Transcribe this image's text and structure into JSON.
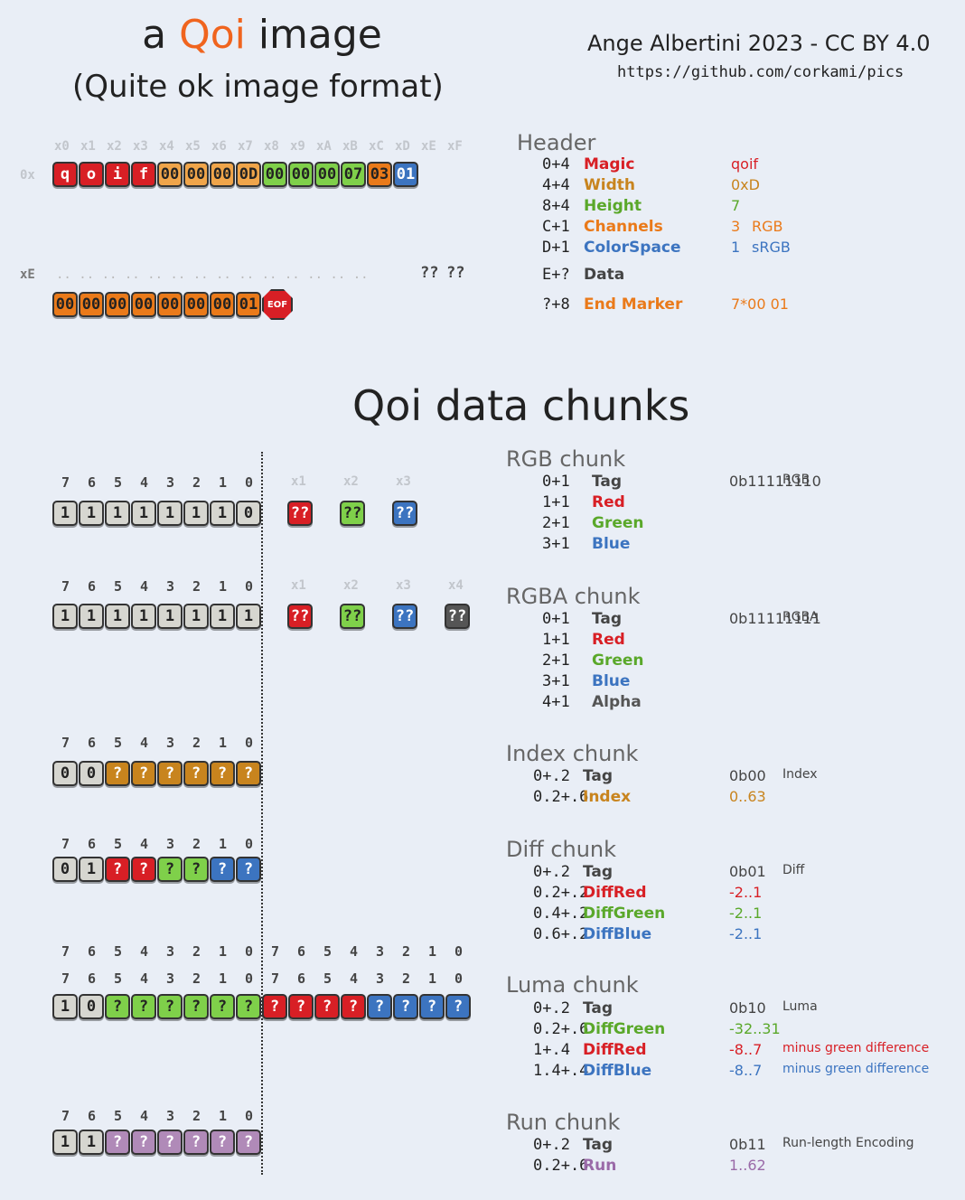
{
  "title": {
    "line1_a": "a ",
    "line1_b": "Qoi",
    "line1_c": " image",
    "line2": "(Quite ok image format)"
  },
  "author": {
    "line": "Ange Albertini 2023 - CC BY 4.0",
    "url": "https://github.com/corkami/pics"
  },
  "hex": {
    "cols": [
      "x0",
      "x1",
      "x2",
      "x3",
      "x4",
      "x5",
      "x6",
      "x7",
      "x8",
      "x9",
      "xA",
      "xB",
      "xC",
      "xD",
      "xE",
      "xF"
    ],
    "row0_label": "0x",
    "row0": [
      "q",
      "o",
      "i",
      "f",
      "00",
      "00",
      "00",
      "0D",
      "00",
      "00",
      "00",
      "07",
      "03",
      "01"
    ],
    "rowE_label": "xE",
    "dots": ".. .. .. .. .. .. .. .. .. .. .. .. .. ..",
    "rowE_tail": [
      "??",
      "??"
    ],
    "end": [
      "00",
      "00",
      "00",
      "00",
      "00",
      "00",
      "00",
      "01"
    ],
    "eof": "EOF"
  },
  "header": {
    "title": "Header",
    "fields": [
      {
        "off": "0+4",
        "name": "Magic",
        "val": "qoif",
        "extra": ""
      },
      {
        "off": "4+4",
        "name": "Width",
        "val": "0xD",
        "extra": ""
      },
      {
        "off": "8+4",
        "name": "Height",
        "val": "7",
        "extra": ""
      },
      {
        "off": "C+1",
        "name": "Channels",
        "val": "3",
        "extra": "RGB"
      },
      {
        "off": "D+1",
        "name": "ColorSpace",
        "val": "1",
        "extra": "sRGB"
      },
      {
        "off": "E+?",
        "name": "Data",
        "val": "",
        "extra": ""
      },
      {
        "off": "?+8",
        "name": "End Marker",
        "val": "7*00 01",
        "extra": ""
      }
    ]
  },
  "chunks_title": "Qoi data chunks",
  "bitnums": [
    "7",
    "6",
    "5",
    "4",
    "3",
    "2",
    "1",
    "0"
  ],
  "rgb": {
    "title": "RGB chunk",
    "bytes_hdr": [
      "x1",
      "x2",
      "x3"
    ],
    "bits": [
      "1",
      "1",
      "1",
      "1",
      "1",
      "1",
      "1",
      "0"
    ],
    "extra": [
      "??",
      "??",
      "??"
    ],
    "fields": [
      {
        "off": "0+1",
        "name": "Tag",
        "val": "0b11111110",
        "extra": "RGB"
      },
      {
        "off": "1+1",
        "name": "Red",
        "val": "",
        "extra": ""
      },
      {
        "off": "2+1",
        "name": "Green",
        "val": "",
        "extra": ""
      },
      {
        "off": "3+1",
        "name": "Blue",
        "val": "",
        "extra": ""
      }
    ]
  },
  "rgba": {
    "title": "RGBA chunk",
    "bytes_hdr": [
      "x1",
      "x2",
      "x3",
      "x4"
    ],
    "bits": [
      "1",
      "1",
      "1",
      "1",
      "1",
      "1",
      "1",
      "1"
    ],
    "extra": [
      "??",
      "??",
      "??",
      "??"
    ],
    "fields": [
      {
        "off": "0+1",
        "name": "Tag",
        "val": "0b11111111",
        "extra": "RGBA"
      },
      {
        "off": "1+1",
        "name": "Red",
        "val": "",
        "extra": ""
      },
      {
        "off": "2+1",
        "name": "Green",
        "val": "",
        "extra": ""
      },
      {
        "off": "3+1",
        "name": "Blue",
        "val": "",
        "extra": ""
      },
      {
        "off": "4+1",
        "name": "Alpha",
        "val": "",
        "extra": ""
      }
    ]
  },
  "index": {
    "title": "Index chunk",
    "bits": [
      "0",
      "0",
      "?",
      "?",
      "?",
      "?",
      "?",
      "?"
    ],
    "fields": [
      {
        "off": "0+.2",
        "name": "Tag",
        "val": "0b00",
        "extra": "Index"
      },
      {
        "off": "0.2+.6",
        "name": "Index",
        "val": "0..63",
        "extra": ""
      }
    ]
  },
  "diff": {
    "title": "Diff chunk",
    "bits": [
      "0",
      "1",
      "?",
      "?",
      "?",
      "?",
      "?",
      "?"
    ],
    "fields": [
      {
        "off": "0+.2",
        "name": "Tag",
        "val": "0b01",
        "extra": "Diff"
      },
      {
        "off": "0.2+.2",
        "name": "DiffRed",
        "val": "-2..1",
        "extra": ""
      },
      {
        "off": "0.4+.2",
        "name": "DiffGreen",
        "val": "-2..1",
        "extra": ""
      },
      {
        "off": "0.6+.2",
        "name": "DiffBlue",
        "val": "-2..1",
        "extra": ""
      }
    ]
  },
  "luma": {
    "title": "Luma chunk",
    "bits": [
      "1",
      "0",
      "?",
      "?",
      "?",
      "?",
      "?",
      "?",
      "?",
      "?",
      "?",
      "?",
      "?",
      "?",
      "?",
      "?"
    ],
    "fields": [
      {
        "off": "0+.2",
        "name": "Tag",
        "val": "0b10",
        "extra": "Luma"
      },
      {
        "off": "0.2+.6",
        "name": "DiffGreen",
        "val": "-32..31",
        "extra": ""
      },
      {
        "off": "1+.4",
        "name": "DiffRed",
        "val": "-8..7",
        "extra": "minus green difference"
      },
      {
        "off": "1.4+.4",
        "name": "DiffBlue",
        "val": "-8..7",
        "extra": "minus green difference"
      }
    ]
  },
  "run": {
    "title": "Run chunk",
    "bits": [
      "1",
      "1",
      "?",
      "?",
      "?",
      "?",
      "?",
      "?"
    ],
    "fields": [
      {
        "off": "0+.2",
        "name": "Tag",
        "val": "0b11",
        "extra": "Run-length Encoding"
      },
      {
        "off": "0.2+.6",
        "name": "Run",
        "val": "1..62",
        "extra": ""
      }
    ]
  },
  "colors": {
    "red": "#d81f25",
    "orange": "#f0a54a",
    "green": "#7fd04a",
    "blue": "#3c74c0",
    "brown": "#c8841e",
    "purple": "#b08ab8",
    "gray": "#d6d6d0"
  }
}
